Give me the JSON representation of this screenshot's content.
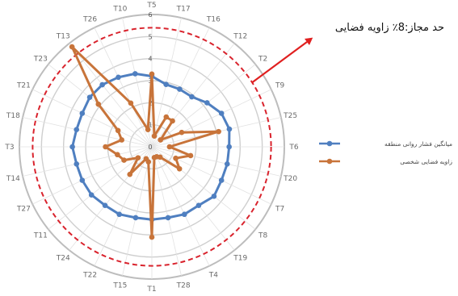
{
  "chart_data": {
    "type": "radar",
    "categories": [
      "T5",
      "T17",
      "T16",
      "T12",
      "T2",
      "T9",
      "T25",
      "T6",
      "T20",
      "T7",
      "T8",
      "T19",
      "T4",
      "T28",
      "T1",
      "T15",
      "T22",
      "T24",
      "T11",
      "T27",
      "T14",
      "T3",
      "T18",
      "T21",
      "T23",
      "T13",
      "T26",
      "T10"
    ],
    "rings": [
      0,
      1,
      2,
      3,
      4,
      5,
      6
    ],
    "ring_labels": [
      "0",
      "1",
      "2",
      "3",
      "4",
      "5",
      "6"
    ],
    "rmax": 6,
    "threshold": {
      "value": 5.4,
      "color": "#d9232d",
      "label": "حد مجاز:8٪ زاویه فضایی"
    },
    "series": [
      {
        "name": "میانگین فشار روانی منطقه",
        "color": "#4f7fc0",
        "values": [
          3.2,
          2.9,
          2.9,
          2.9,
          3.2,
          3.5,
          3.6,
          3.5,
          3.5,
          3.5,
          3.6,
          3.4,
          3.4,
          3.3,
          3.3,
          3.3,
          3.4,
          3.4,
          3.5,
          3.5,
          3.5,
          3.6,
          3.5,
          3.5,
          3.6,
          3.6,
          3.5,
          3.4
        ]
      },
      {
        "name": "زاویه فضایی شخصی",
        "color": "#c8743a",
        "values": [
          3.3,
          0.5,
          1.5,
          1.5,
          0.5,
          1.5,
          3.1,
          0.8,
          1.8,
          1.2,
          1.6,
          0.6,
          0.5,
          0.5,
          4.1,
          0.7,
          0.6,
          1.6,
          0.8,
          1.4,
          1.6,
          2.1,
          1.4,
          1.7,
          3.1,
          5.8,
          2.2,
          0.8
        ]
      }
    ]
  }
}
